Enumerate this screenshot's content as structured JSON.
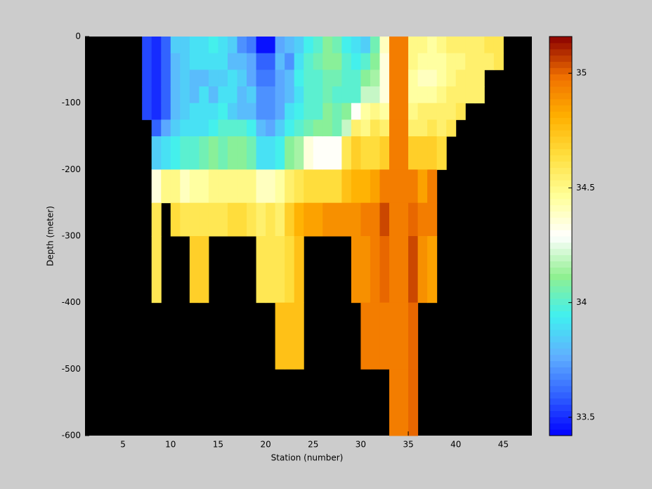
{
  "chart_data": {
    "type": "heatmap",
    "xlabel": "Station (number)",
    "ylabel": "Depth (meter)",
    "xlim": [
      1,
      48
    ],
    "xticks": [
      5,
      10,
      15,
      20,
      25,
      30,
      35,
      40,
      45
    ],
    "ylim": [
      -600,
      0
    ],
    "yticks": [
      -600,
      -500,
      -400,
      -300,
      -200,
      -100,
      0
    ],
    "x": [
      7,
      8,
      9,
      10,
      11,
      12,
      13,
      14,
      15,
      16,
      17,
      18,
      19,
      20,
      21,
      22,
      23,
      24,
      25,
      26,
      27,
      28,
      29,
      30,
      31,
      32,
      33,
      34,
      35,
      36,
      37,
      38,
      39,
      40,
      41,
      42,
      43,
      44,
      45
    ],
    "y": [
      0,
      -25,
      -50,
      -75,
      -100,
      -125,
      -150,
      -200,
      -250,
      -300,
      -400,
      -500,
      -600
    ],
    "values": [
      [
        33.55,
        33.55,
        33.55,
        33.55,
        33.55,
        null,
        null,
        null,
        null,
        null,
        null,
        null
      ],
      [
        33.5,
        33.5,
        33.5,
        33.5,
        33.5,
        33.6,
        33.85,
        34.35,
        34.6,
        34.6,
        null,
        null
      ],
      [
        33.6,
        33.6,
        33.6,
        33.6,
        33.6,
        33.75,
        33.9,
        34.5,
        null,
        null,
        null,
        null
      ],
      [
        33.85,
        33.8,
        33.8,
        33.8,
        33.8,
        33.85,
        33.95,
        34.5,
        34.65,
        null,
        null,
        null
      ],
      [
        33.85,
        33.85,
        33.85,
        33.85,
        33.85,
        33.9,
        34.0,
        34.4,
        34.6,
        null,
        null,
        null
      ],
      [
        33.9,
        33.9,
        33.8,
        33.8,
        33.9,
        33.9,
        34.0,
        34.45,
        34.6,
        34.7,
        null,
        null
      ],
      [
        33.9,
        33.9,
        33.8,
        33.9,
        33.9,
        33.9,
        34.05,
        34.45,
        34.6,
        34.7,
        null,
        null
      ],
      [
        33.95,
        33.9,
        33.85,
        33.8,
        33.9,
        33.95,
        34.1,
        34.5,
        34.6,
        null,
        null,
        null
      ],
      [
        33.9,
        33.9,
        33.85,
        33.9,
        33.95,
        34.0,
        34.05,
        34.5,
        34.6,
        null,
        null,
        null
      ],
      [
        33.85,
        33.8,
        33.9,
        33.9,
        33.85,
        34.0,
        34.1,
        34.5,
        34.65,
        null,
        null,
        null
      ],
      [
        33.7,
        33.8,
        33.85,
        33.8,
        33.8,
        34.0,
        34.1,
        34.5,
        34.65,
        null,
        null,
        null
      ],
      [
        33.65,
        33.75,
        33.75,
        33.85,
        33.8,
        33.95,
        34.05,
        34.5,
        34.6,
        null,
        null,
        null
      ],
      [
        33.45,
        33.6,
        33.65,
        33.7,
        33.7,
        33.8,
        33.9,
        34.4,
        34.55,
        34.6,
        null,
        null
      ],
      [
        33.45,
        33.6,
        33.65,
        33.7,
        33.7,
        33.75,
        33.9,
        34.4,
        34.6,
        34.6,
        null,
        null
      ],
      [
        33.75,
        33.8,
        33.75,
        33.75,
        33.75,
        33.85,
        33.95,
        34.45,
        34.55,
        34.6,
        34.75,
        null
      ],
      [
        33.8,
        33.7,
        33.8,
        33.8,
        33.9,
        33.95,
        34.1,
        34.55,
        34.7,
        34.65,
        34.75,
        null
      ],
      [
        33.85,
        33.9,
        33.95,
        33.9,
        33.95,
        34.0,
        34.15,
        34.6,
        34.8,
        34.75,
        34.75,
        null
      ],
      [
        33.95,
        34.0,
        34.0,
        34.0,
        34.0,
        34.05,
        34.35,
        34.65,
        34.85,
        null,
        null,
        null
      ],
      [
        34.0,
        34.05,
        34.0,
        34.0,
        34.0,
        34.1,
        34.3,
        34.65,
        34.85,
        null,
        null,
        null
      ],
      [
        34.1,
        34.1,
        34.05,
        34.05,
        34.1,
        34.1,
        34.3,
        34.65,
        34.9,
        null,
        null,
        null
      ],
      [
        34.05,
        34.1,
        34.05,
        34.0,
        34.05,
        34.05,
        34.3,
        34.65,
        34.9,
        null,
        null,
        null
      ],
      [
        33.95,
        34.0,
        34.0,
        34.0,
        34.1,
        34.2,
        34.6,
        34.75,
        34.9,
        null,
        null,
        null
      ],
      [
        33.9,
        33.95,
        34.0,
        34.0,
        34.3,
        34.55,
        34.7,
        34.8,
        34.9,
        34.9,
        null,
        null
      ],
      [
        33.85,
        34.0,
        34.1,
        34.2,
        34.45,
        34.5,
        34.65,
        34.8,
        34.95,
        34.9,
        34.95,
        null
      ],
      [
        34.05,
        34.1,
        34.15,
        34.2,
        34.5,
        34.6,
        34.65,
        34.85,
        34.95,
        34.95,
        34.95,
        null
      ],
      [
        34.4,
        34.35,
        34.35,
        34.35,
        34.45,
        34.55,
        34.7,
        34.95,
        35.05,
        35.0,
        34.95,
        null
      ],
      [
        34.95,
        34.95,
        34.95,
        34.95,
        34.95,
        34.95,
        34.95,
        34.95,
        34.95,
        34.95,
        34.95,
        34.95
      ],
      [
        34.95,
        34.95,
        34.95,
        34.95,
        34.95,
        34.95,
        34.95,
        34.95,
        34.95,
        34.95,
        34.95,
        34.95
      ],
      [
        34.5,
        34.5,
        34.45,
        34.45,
        34.5,
        34.55,
        34.7,
        34.95,
        35.0,
        35.05,
        35.0,
        35.0
      ],
      [
        34.5,
        34.45,
        34.4,
        34.45,
        34.55,
        34.55,
        34.7,
        34.85,
        34.95,
        34.9,
        null,
        null
      ],
      [
        34.45,
        34.45,
        34.4,
        34.45,
        34.55,
        34.6,
        34.7,
        34.95,
        34.95,
        34.85,
        null,
        null
      ],
      [
        34.5,
        34.45,
        34.45,
        34.5,
        34.55,
        34.55,
        34.65,
        null,
        null,
        null,
        null,
        null
      ],
      [
        34.55,
        34.5,
        34.5,
        34.55,
        34.55,
        34.6,
        null,
        null,
        null,
        null,
        null,
        null
      ],
      [
        34.55,
        34.5,
        34.55,
        34.55,
        34.6,
        null,
        null,
        null,
        null,
        null,
        null,
        null
      ],
      [
        34.55,
        34.55,
        34.55,
        34.55,
        null,
        null,
        null,
        null,
        null,
        null,
        null,
        null
      ],
      [
        34.55,
        34.55,
        34.55,
        34.55,
        null,
        null,
        null,
        null,
        null,
        null,
        null,
        null
      ],
      [
        34.6,
        34.55,
        null,
        null,
        null,
        null,
        null,
        null,
        null,
        null,
        null,
        null
      ],
      [
        34.6,
        34.6,
        null,
        null,
        null,
        null,
        null,
        null,
        null,
        null,
        null,
        null
      ]
    ],
    "clim": [
      33.42,
      35.16
    ],
    "colorbar_ticks": [
      33.5,
      34,
      34.5,
      35
    ],
    "colormap": [
      "#0000ff",
      "#3060ff",
      "#60b0ff",
      "#40f0f0",
      "#90f090",
      "#ffffff",
      "#ffff99",
      "#ffe040",
      "#ffb000",
      "#f07000",
      "#8b0000"
    ],
    "background": "#000000"
  }
}
